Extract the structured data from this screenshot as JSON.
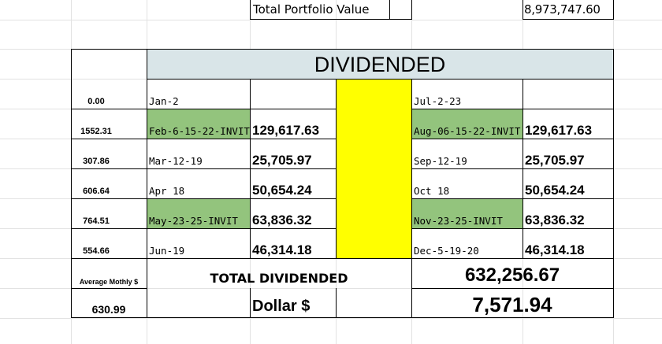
{
  "colors": {
    "header_fill": "#d9e5e8",
    "highlight_green": "#93c47d",
    "highlight_yellow": "#ffff00",
    "grid": "#e2e2e2",
    "border": "#000000"
  },
  "portfolio": {
    "label": "Total Portfolio Value",
    "value": "8,973,747.60"
  },
  "title": "DIVIDENDED",
  "side_values": [
    "0.00",
    "1552.31",
    "307.86",
    "606.64",
    "764.51",
    "554.66"
  ],
  "rows": [
    {
      "left_date": "Jan-2",
      "left_value": "",
      "left_highlight": false,
      "right_date": "Jul-2-23",
      "right_value": "",
      "right_highlight": false
    },
    {
      "left_date": "Feb-6-15-22-INVIT",
      "left_value": "129,617.63",
      "left_highlight": true,
      "right_date": "Aug-06-15-22-INVIT",
      "right_value": "129,617.63",
      "right_highlight": true
    },
    {
      "left_date": "Mar-12-19",
      "left_value": "25,705.97",
      "left_highlight": false,
      "right_date": "Sep-12-19",
      "right_value": "25,705.97",
      "right_highlight": false
    },
    {
      "left_date": "Apr 18",
      "left_value": "50,654.24",
      "left_highlight": false,
      "right_date": "Oct 18",
      "right_value": "50,654.24",
      "right_highlight": false
    },
    {
      "left_date": "May-23-25-INVIT",
      "left_value": "63,836.32",
      "left_highlight": true,
      "right_date": "Nov-23-25-INVIT",
      "right_value": "63,836.32",
      "right_highlight": true
    },
    {
      "left_date": "Jun-19",
      "left_value": "46,314.18",
      "left_highlight": false,
      "right_date": "Dec-5-19-20",
      "right_value": "46,314.18",
      "right_highlight": false
    }
  ],
  "totals": {
    "avg_label": "Average Mothly $",
    "avg_value": "630.99",
    "total_label": "TOTAL DIVIDENDED",
    "total_value": "632,256.67",
    "dollar_label": "Dollar $",
    "dollar_value": "7,571.94"
  }
}
